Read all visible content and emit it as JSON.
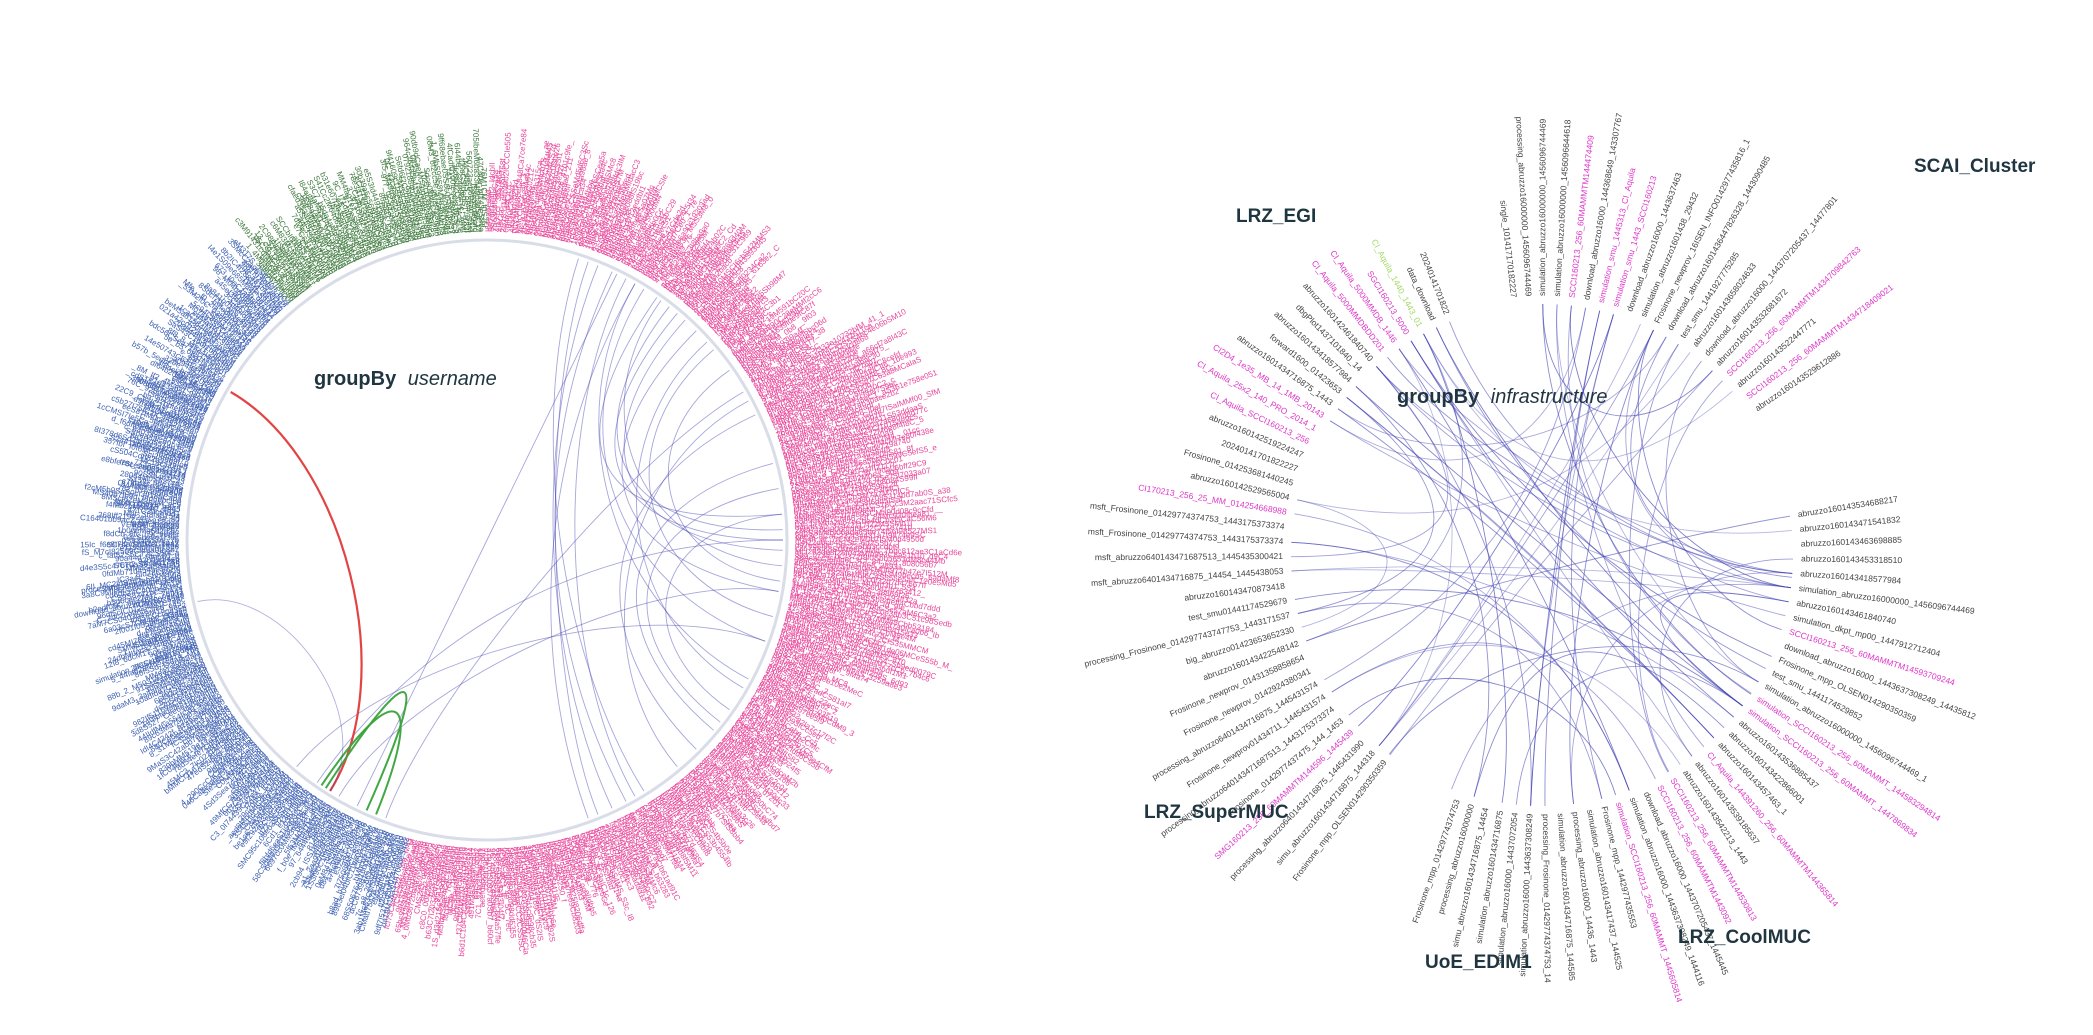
{
  "colors": {
    "pink": "#e8479a",
    "blue": "#3f62b3",
    "green": "#3f7a3f",
    "edge": "#3a3ab0",
    "highlight_red": "#e03a3a",
    "highlight_green": "#38a23b",
    "gray": "#444444",
    "magenta": "#de37c9",
    "lime": "#a6d96a"
  },
  "left_panel": {
    "title_bold": "groupBy",
    "title_italic": "username",
    "segments": [
      {
        "name": "pink",
        "start_deg": 0,
        "end_deg": 195
      },
      {
        "name": "blue",
        "start_deg": 195,
        "end_deg": 320
      },
      {
        "name": "green",
        "start_deg": 320,
        "end_deg": 360
      }
    ],
    "leaf_labels": [
      "simulation_SCCI160213_1448",
      "SMMC16012_144567",
      "IT_M_144362",
      "download_abruzzo16000_1440",
      "processing_Frosinone_1442",
      "SCH2_144521348",
      "SCH2_SMMC_1443",
      "VERDE_144523",
      "SMT160213_1445",
      "CI_Aquila_144309",
      "test_smu_1441174",
      "abruzzo1601434",
      "Frosinone_newprov",
      "msft_abruzzo1601",
      "simulation_abruzzo16",
      "UM_M_1445"
    ]
  },
  "right_panel": {
    "title_bold": "groupBy",
    "title_italic": "infrastructure",
    "groups": [
      {
        "label": "LRZ_EGI",
        "start_deg": 290,
        "end_deg": 355
      },
      {
        "label": "SCAI_Cluster",
        "start_deg": 0,
        "end_deg": 60
      },
      {
        "label": "LRZ_CoolMUC",
        "start_deg": 125,
        "end_deg": 170
      },
      {
        "label": "UoE_EDIM1",
        "start_deg": 170,
        "end_deg": 200
      },
      {
        "label": "LRZ_SuperMUC",
        "start_deg": 200,
        "end_deg": 250
      }
    ],
    "leaf_labels": [
      {
        "text": "single_101417170182227",
        "color": "gray"
      },
      {
        "text": "processing_abruzzo16000000_1456096744469",
        "color": "gray"
      },
      {
        "text": "simulation_abruzzo16000000_1456096744469",
        "color": "gray"
      },
      {
        "text": "simulation_abruzzo16000000_1456096644618",
        "color": "gray"
      },
      {
        "text": "SCCI160213_256_60MAMMTM144474409",
        "color": "magenta"
      },
      {
        "text": "download_abruzzo16000_144368649_143307767",
        "color": "gray"
      },
      {
        "text": "simulation_smu_1445313_CI_Aquila",
        "color": "magenta"
      },
      {
        "text": "simulation_smu_1443_SCCI160213",
        "color": "magenta"
      },
      {
        "text": "download_abruzzo16000_1443637463",
        "color": "gray"
      },
      {
        "text": "simulation_abruzzo1601438_29432",
        "color": "gray"
      },
      {
        "text": "Frosinone_newprov_16ISEN_INFO0142977435816_1",
        "color": "gray"
      },
      {
        "text": "download_abruzzo1601436447826328_1443090485",
        "color": "gray"
      },
      {
        "text": "test_smu_1441927775285",
        "color": "gray"
      },
      {
        "text": "abruzzo160143658024633",
        "color": "gray"
      },
      {
        "text": "download_abruzzo16000_1443707205437_14477801",
        "color": "gray"
      },
      {
        "text": "abruzzo160143532681672",
        "color": "gray"
      },
      {
        "text": "SCCI160213_256_60MAMMTM1434709842763",
        "color": "magenta"
      },
      {
        "text": "abruzzo160143522447771",
        "color": "gray"
      },
      {
        "text": "SCCI160213_256_60MAMMTM1434718409021",
        "color": "magenta"
      },
      {
        "text": "abruzzo160143529612886",
        "color": "gray"
      },
      {
        "text": "abruzzo160143534688217",
        "color": "gray"
      },
      {
        "text": "abruzzo160143471541832",
        "color": "gray"
      },
      {
        "text": "abruzzo160143463698885",
        "color": "gray"
      },
      {
        "text": "abruzzo160143453318510",
        "color": "gray"
      },
      {
        "text": "abruzzo160143418577984",
        "color": "gray"
      },
      {
        "text": "simulation_abruzzo16000000_1456096744469",
        "color": "gray"
      },
      {
        "text": "abruzzo160143461840740",
        "color": "gray"
      },
      {
        "text": "simulation_dkpt_mp00_1447912712404",
        "color": "gray"
      },
      {
        "text": "SCCI160213_256_60MAMMTM14593709244",
        "color": "magenta"
      },
      {
        "text": "download_abruzzo16000_1443637308249_14435812",
        "color": "gray"
      },
      {
        "text": "Frosinone_mpp_OLSEN014290350359",
        "color": "gray"
      },
      {
        "text": "test_smu_1441174529852",
        "color": "gray"
      },
      {
        "text": "simulation_abruzzo16000000_1456096744469_1",
        "color": "gray"
      },
      {
        "text": "simulation_SCCI160213_256_60MAMMT_144583294814",
        "color": "magenta"
      },
      {
        "text": "simulation_SCCI160213_256_60MAMMT_1447869834",
        "color": "magenta"
      },
      {
        "text": "abruzzo160143536885437",
        "color": "gray"
      },
      {
        "text": "abruzzo160143422866001",
        "color": "gray"
      },
      {
        "text": "abruzzo160143457463_1",
        "color": "gray"
      },
      {
        "text": "CI_Aquila_144391260_256_60MAMMTM144365814",
        "color": "magenta"
      },
      {
        "text": "abruzzo160143539185637",
        "color": "gray"
      },
      {
        "text": "abruzzo160143542213_1443",
        "color": "gray"
      },
      {
        "text": "SCCI160213_256_60MAMMTM144530813",
        "color": "magenta"
      },
      {
        "text": "SCCI160213_256_60MAMMTM1443092",
        "color": "magenta"
      },
      {
        "text": "download_abruzzo16000_1443707205437_1445445",
        "color": "gray"
      },
      {
        "text": "simulation_abruzzo16000_1443637308249_1444116",
        "color": "gray"
      },
      {
        "text": "simulation_SCCI160213_256_60MAMMT_1445605814",
        "color": "magenta"
      },
      {
        "text": "Frosinone_mpp_1442977435553",
        "color": "gray"
      },
      {
        "text": "simulation_abruzzo160143417437_144525",
        "color": "gray"
      },
      {
        "text": "processing_abruzzo16000_14436_1443",
        "color": "gray"
      },
      {
        "text": "simulation_abruzzo1601434716875_144585",
        "color": "gray"
      },
      {
        "text": "processing_Frosinone_01429774374753_14",
        "color": "gray"
      },
      {
        "text": "simulation_abruzzo16000_1443637308249",
        "color": "gray"
      },
      {
        "text": "simulation_abruzzo16000_14437072054",
        "color": "gray"
      },
      {
        "text": "simulation_abruzzo1601434716875",
        "color": "gray"
      },
      {
        "text": "simu_abruzzo1601434716875_14454",
        "color": "gray"
      },
      {
        "text": "processing_abruzzo16000000",
        "color": "gray"
      },
      {
        "text": "Frosinone_mpp_01429774374753",
        "color": "gray"
      },
      {
        "text": "Frosinone_mpp_OLSEN014290350359",
        "color": "gray"
      },
      {
        "text": "simu_abruzzo1601434716875_144318",
        "color": "gray"
      },
      {
        "text": "processing_abruzzo6401434716875_1445431990",
        "color": "gray"
      },
      {
        "text": "SMG160213_256_60MAMMTM144596_1445439",
        "color": "magenta"
      },
      {
        "text": "Frosinone_0142977437475_144_1453",
        "color": "gray"
      },
      {
        "text": "processing_abruzzo640143471687513_1443175373374",
        "color": "gray"
      },
      {
        "text": "Frosinone_newprov01434711_1445431574",
        "color": "gray"
      },
      {
        "text": "processing_abruzzo6401434716875_1445431574",
        "color": "gray"
      },
      {
        "text": "Frosinone_newprov_0142924380341",
        "color": "gray"
      },
      {
        "text": "Frosinone_newprov_01431358858654",
        "color": "gray"
      },
      {
        "text": "abruzzo160143422548142",
        "color": "gray"
      },
      {
        "text": "big_abruzzo01423653652330",
        "color": "gray"
      },
      {
        "text": "processing_Frosinone_014297743747753_1443171537",
        "color": "gray"
      },
      {
        "text": "test_smu01441174529679",
        "color": "gray"
      },
      {
        "text": "abruzzo160143470873418",
        "color": "gray"
      },
      {
        "text": "msft_abruzzo6401434716875_14454_1445438053",
        "color": "gray"
      },
      {
        "text": "msft_abruzzo640143471687513_1445435300421",
        "color": "gray"
      },
      {
        "text": "msft_Frosinone_01429774374753_1443175373374",
        "color": "gray"
      },
      {
        "text": "msft_Frosinone_01429774374753_1443175373374",
        "color": "gray"
      },
      {
        "text": "CI170213_256_25_MM_014254668988",
        "color": "magenta"
      },
      {
        "text": "abruzzo160142529565004",
        "color": "gray"
      },
      {
        "text": "Frosinone_014253681440245",
        "color": "gray"
      },
      {
        "text": "20240141701822227",
        "color": "gray"
      },
      {
        "text": "abruzzo160142519224247",
        "color": "gray"
      },
      {
        "text": "CI_Aquila_SCCI160213_256",
        "color": "magenta"
      },
      {
        "text": "CI_Aquila_25x2_140_PRO_2014_1",
        "color": "magenta"
      },
      {
        "text": "CI2D4_1e35_MB_14_1MB_20143",
        "color": "magenta"
      },
      {
        "text": "abruzzo1601434716875_1443",
        "color": "gray"
      },
      {
        "text": "forward1600_01423653",
        "color": "gray"
      },
      {
        "text": "abruzzo160143418577984",
        "color": "gray"
      },
      {
        "text": "dbgPlot1437101840_14",
        "color": "gray"
      },
      {
        "text": "abruzzo160142461840740",
        "color": "gray"
      },
      {
        "text": "CI_Aquila_5000MMDBDD201",
        "color": "magenta"
      },
      {
        "text": "CI_Aquila_5000MMDB_1446",
        "color": "magenta"
      },
      {
        "text": "SGCI160213_5000",
        "color": "magenta"
      },
      {
        "text": "CI_Aquila_1440_1443_01",
        "color": "lime"
      },
      {
        "text": "data_download",
        "color": "gray"
      },
      {
        "text": "20240141701822",
        "color": "gray"
      }
    ]
  }
}
